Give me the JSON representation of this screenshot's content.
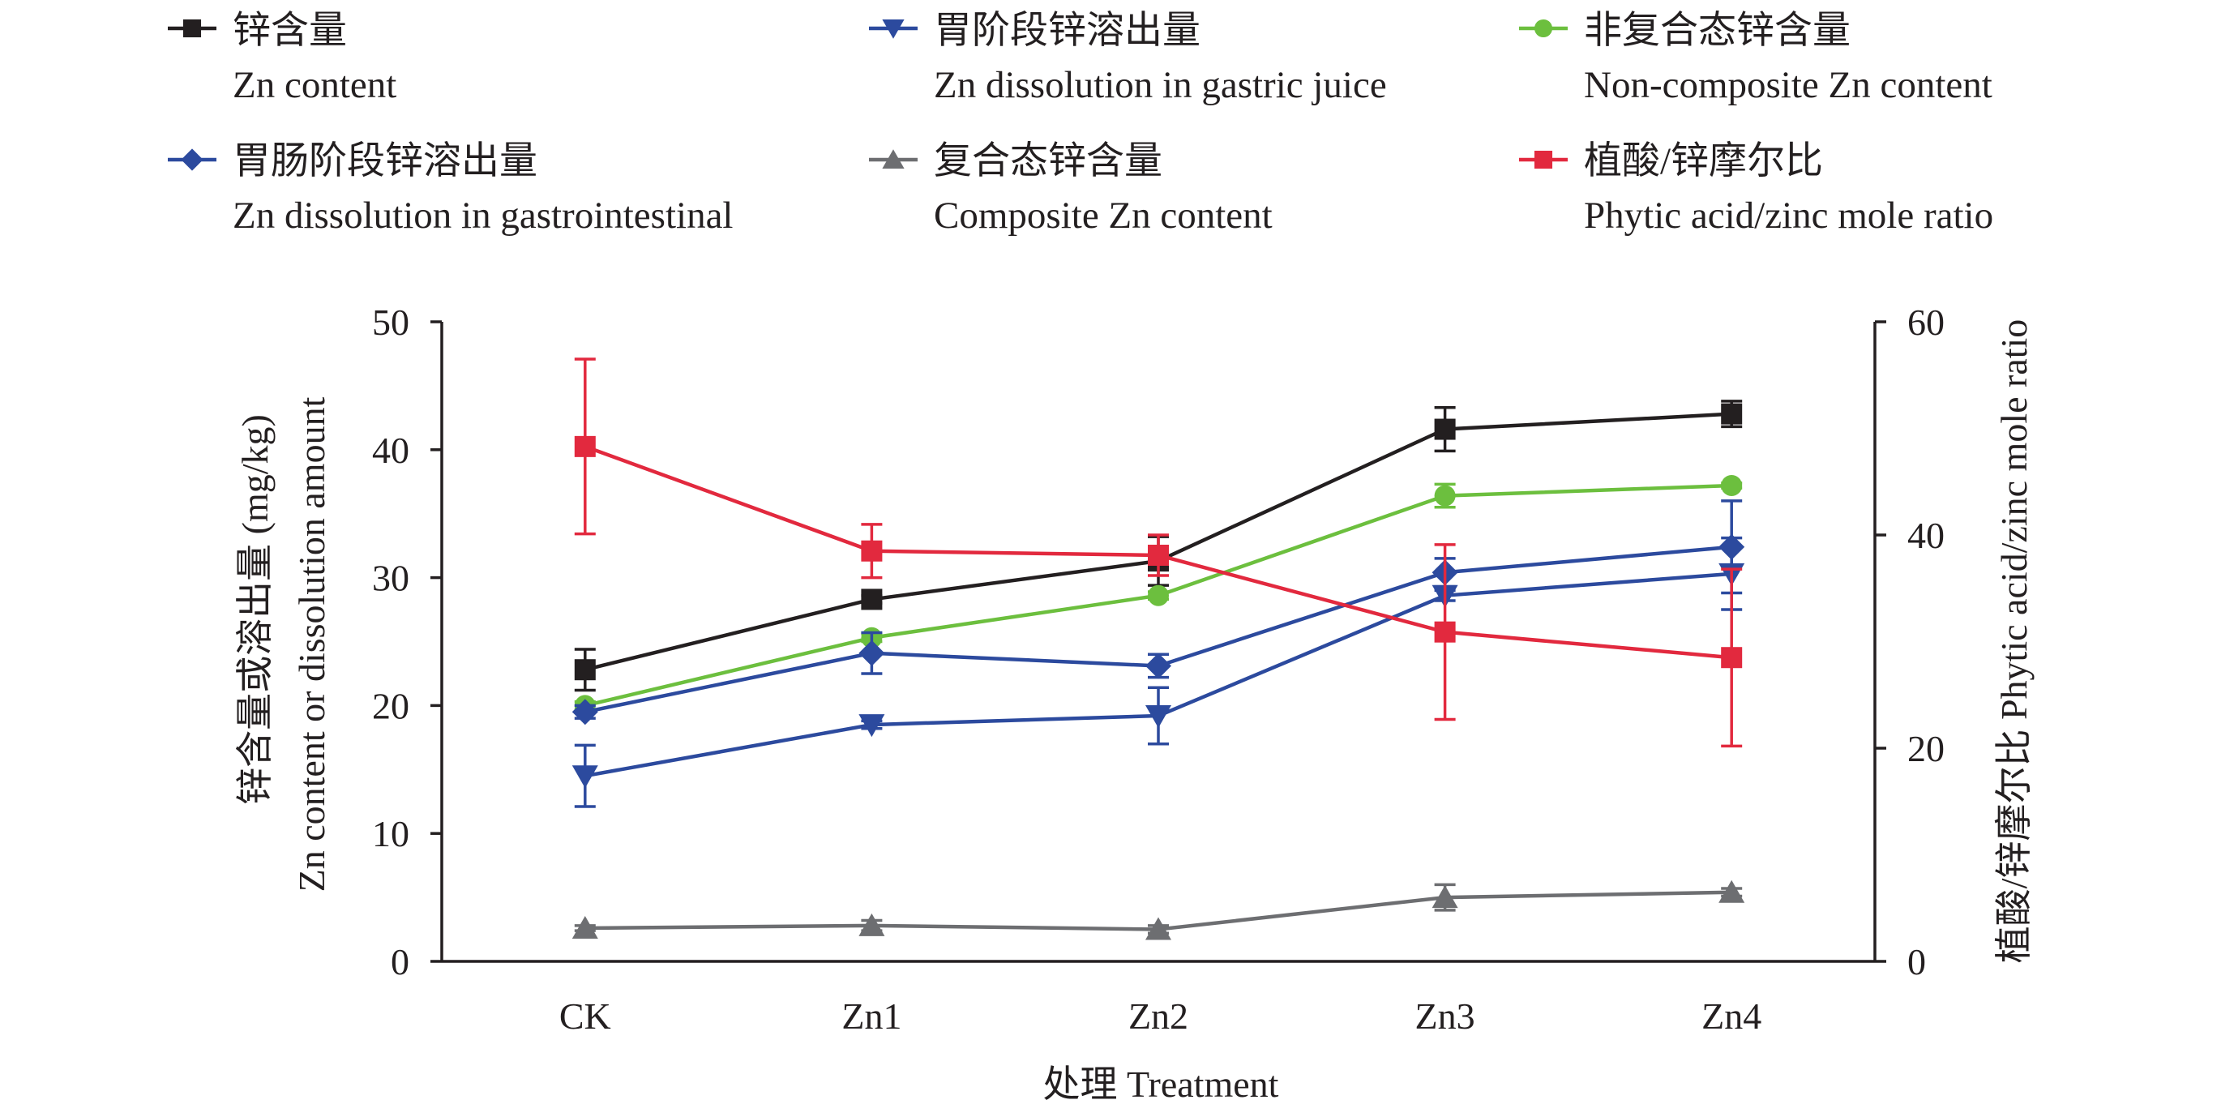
{
  "chart_data": {
    "type": "line",
    "categories": [
      "CK",
      "Zn1",
      "Zn2",
      "Zn3",
      "Zn4"
    ],
    "xlabel": "处理 Treatment",
    "ylabel": "锌含量或溶出量 (mg/kg)",
    "ylabel_en": "Zn content or dissolution amount",
    "y2label": "植酸/锌摩尔比 Phytic acid/zinc mole ratio",
    "ylim": [
      0,
      50
    ],
    "yticks": [
      0,
      10,
      20,
      30,
      40,
      50
    ],
    "y2lim": [
      0,
      60
    ],
    "y2ticks": [
      0,
      20,
      40,
      60
    ],
    "grid": false,
    "legend_position": "top",
    "series": [
      {
        "name": "锌含量",
        "name_en": "Zn content",
        "axis": "left",
        "marker": "square",
        "color": "#231f20",
        "values": [
          22.8,
          28.3,
          31.3,
          41.6,
          42.8
        ],
        "error": [
          1.6,
          0.3,
          1.9,
          1.7,
          1.0
        ]
      },
      {
        "name": "胃阶段锌溶出量",
        "name_en": "Zn dissolution in gastric juice",
        "axis": "left",
        "marker": "triangle-down",
        "color": "#2c4a9e",
        "values": [
          14.5,
          18.5,
          19.2,
          28.6,
          30.3
        ],
        "error": [
          2.4,
          0.3,
          2.2,
          0.4,
          2.8
        ]
      },
      {
        "name": "非复合态锌含量",
        "name_en": "Non-composite Zn content",
        "axis": "left",
        "marker": "circle",
        "color": "#6cbf3e",
        "values": [
          20.0,
          25.3,
          28.6,
          36.4,
          37.2
        ],
        "error": [
          0.3,
          0.3,
          0.3,
          0.9,
          0.2
        ]
      },
      {
        "name": "胃肠阶段锌溶出量",
        "name_en": "Zn dissolution in gastrointestinal",
        "axis": "left",
        "marker": "diamond",
        "color": "#2c4a9e",
        "values": [
          19.5,
          24.1,
          23.1,
          30.4,
          32.4
        ],
        "error": [
          0.5,
          1.6,
          0.9,
          1.1,
          3.6
        ]
      },
      {
        "name": "复合态锌含量",
        "name_en": "Composite Zn content",
        "axis": "left",
        "marker": "triangle-up",
        "color": "#6d6e71",
        "values": [
          2.6,
          2.8,
          2.5,
          5.0,
          5.4
        ],
        "error": [
          0.2,
          0.4,
          0.3,
          1.0,
          0.3
        ]
      },
      {
        "name": "植酸/锌摩尔比",
        "name_en": "Phytic acid/zinc mole ratio",
        "axis": "right",
        "marker": "square",
        "color": "#e2293e",
        "values": [
          48.3,
          38.5,
          38.1,
          30.9,
          28.5
        ],
        "error": [
          8.2,
          2.5,
          1.9,
          8.2,
          8.3
        ]
      }
    ]
  }
}
